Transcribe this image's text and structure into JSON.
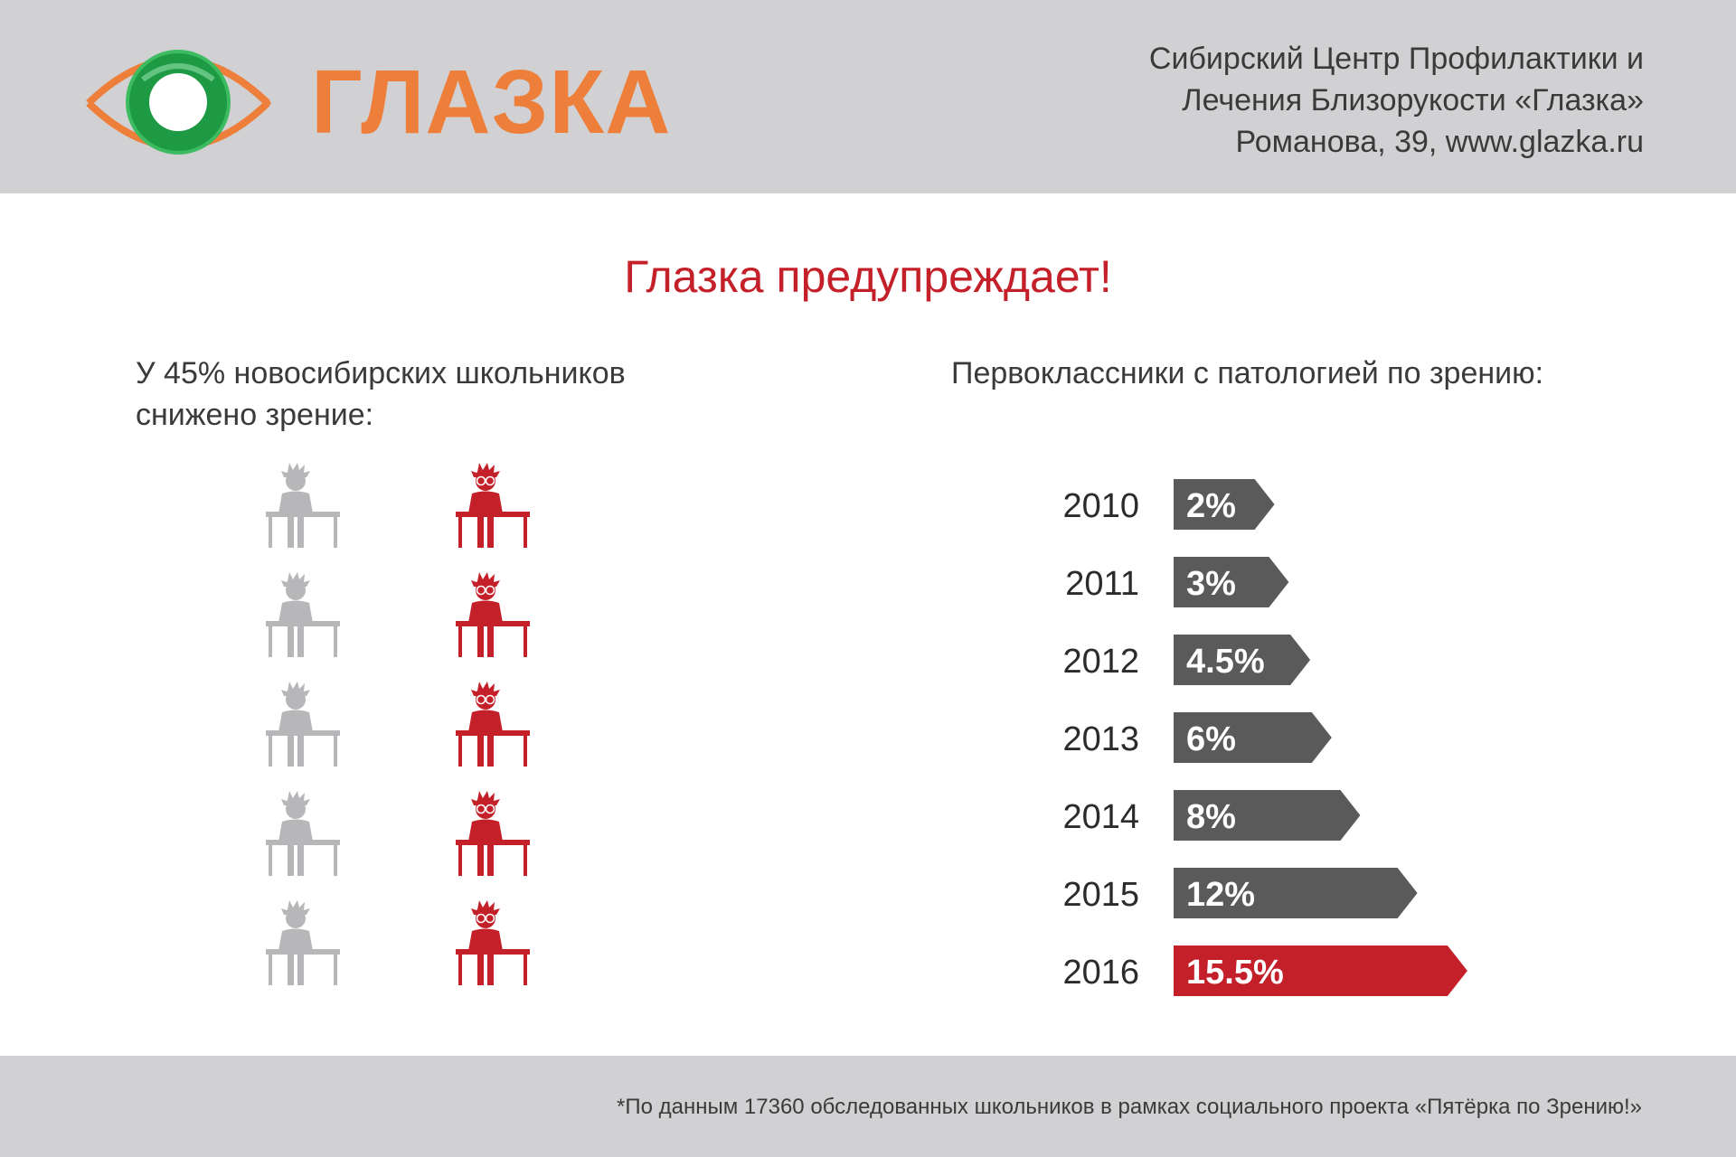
{
  "header": {
    "logo_text": "ГЛАЗКА",
    "org_line1": "Сибирский Центр Профилактики и",
    "org_line2": "Лечения Близорукости «Глазка»",
    "org_line3": "Романова, 39, www.glazka.ru"
  },
  "title": "Глазка предупреждает!",
  "left_section": {
    "caption_line1": "У 45% новосибирских школьников",
    "caption_line2": "снижено зрение:",
    "rows": 5,
    "normal_color": "#b7b7b9",
    "affected_color": "#c4202a"
  },
  "right_section": {
    "caption": "Первоклассники с патологией по  зрению:"
  },
  "chart_data": {
    "type": "bar",
    "orientation": "horizontal",
    "categories": [
      "2010",
      "2011",
      "2012",
      "2013",
      "2014",
      "2015",
      "2016"
    ],
    "values": [
      2,
      3,
      4.5,
      6,
      8,
      12,
      15.5
    ],
    "value_labels": [
      "2%",
      "3%",
      "4.5%",
      "6%",
      "8%",
      "12%",
      "15.5%"
    ],
    "title": "Первоклассники с патологией по  зрению:",
    "xlabel": "",
    "ylabel": "",
    "colors": [
      "#5a5a5a",
      "#5a5a5a",
      "#5a5a5a",
      "#5a5a5a",
      "#5a5a5a",
      "#5a5a5a",
      "#c4202a"
    ]
  },
  "footer": {
    "footnote": "*По данным 17360 обследованных школьников в рамках социального проекта «Пятёрка по Зрению!»"
  },
  "colors": {
    "band": "#d1d1d3",
    "accent_red": "#c4202a",
    "logo_orange": "#ee7f3b",
    "logo_green": "#1e9a45",
    "bar_gray": "#5a5a5a"
  }
}
